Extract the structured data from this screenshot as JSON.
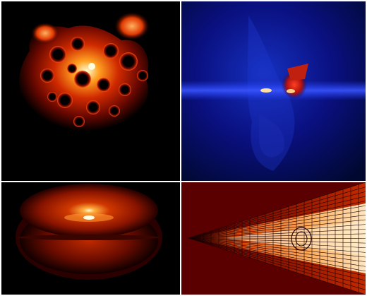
{
  "figure": {
    "panels": [
      {
        "id": "top-left",
        "colormap": "hot"
      },
      {
        "id": "top-right",
        "colormap": "blue-to-red"
      },
      {
        "id": "bottom-left",
        "colormap": "hot"
      },
      {
        "id": "bottom-right",
        "colormap": "hot-mesh"
      }
    ],
    "colors": {
      "black": "#000000",
      "deep_blue": "#000a66",
      "dark_red": "#5a0000",
      "orange": "#ff8a1f",
      "white_hot": "#ffffe6"
    }
  }
}
